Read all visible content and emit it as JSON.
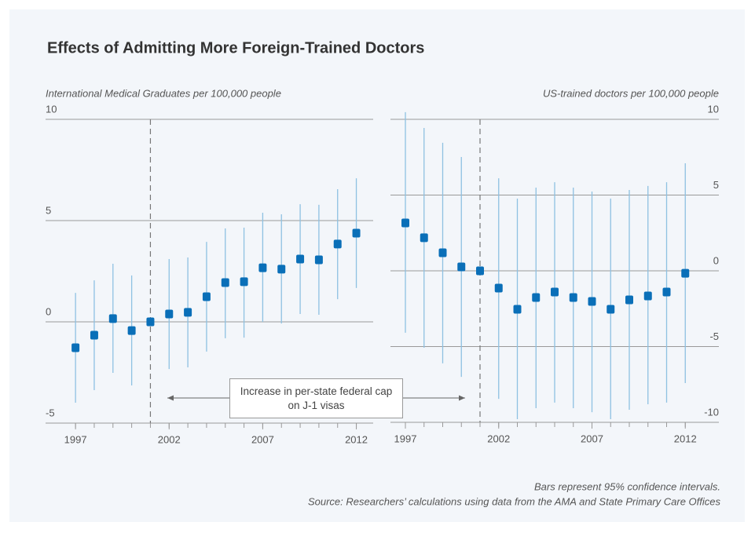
{
  "title": "Effects of Admitting More Foreign-Trained Doctors",
  "annotation": "Increase in per-state federal cap on J-1 visas",
  "notes": [
    "Bars represent 95% confidence intervals.",
    "Source: Researchers’ calculations using data from the AMA and State Primary Care Offices"
  ],
  "chart_data": [
    {
      "type": "errorbar",
      "y_label": "International Medical Graduates per 100,000 people",
      "ytick_side": "left",
      "x": [
        1997,
        1998,
        1999,
        2000,
        2001,
        2002,
        2003,
        2004,
        2005,
        2006,
        2007,
        2008,
        2009,
        2010,
        2011,
        2012
      ],
      "values": [
        -1.28,
        -0.66,
        0.16,
        -0.43,
        0,
        0.39,
        0.47,
        1.24,
        1.94,
        1.98,
        2.67,
        2.6,
        3.1,
        3.06,
        3.84,
        4.38
      ],
      "lower": [
        -3.99,
        -3.37,
        -2.52,
        -3.14,
        null,
        -2.33,
        -2.25,
        -1.47,
        -0.81,
        -0.78,
        0,
        -0.08,
        0.39,
        0.35,
        1.12,
        1.67
      ],
      "upper": [
        1.43,
        2.05,
        2.87,
        2.29,
        null,
        3.1,
        3.18,
        3.95,
        4.61,
        4.65,
        5.39,
        5.31,
        5.81,
        5.78,
        6.55,
        7.09
      ],
      "color": "#0a6fb8",
      "bar_color": "#8ec1e2",
      "vline": 2001,
      "xlim": [
        1995.4,
        2012.9
      ],
      "xticks": [
        1997,
        2002,
        2007,
        2012
      ],
      "ylim": [
        -5,
        10
      ],
      "yticks": [
        -5,
        0,
        5,
        10
      ],
      "grid": true
    },
    {
      "type": "errorbar",
      "y_label": "US-trained doctors per 100,000 people",
      "ytick_side": "right",
      "x": [
        1997,
        1998,
        1999,
        2000,
        2001,
        2002,
        2003,
        2004,
        2005,
        2006,
        2007,
        2008,
        2009,
        2010,
        2011,
        2012
      ],
      "values": [
        3.16,
        2.18,
        1.19,
        0.26,
        0,
        -1.14,
        -2.54,
        -1.76,
        -1.4,
        -1.76,
        -2.02,
        -2.54,
        -1.92,
        -1.66,
        -1.4,
        -0.16
      ],
      "lower": [
        -4.09,
        -5.08,
        -6.11,
        -7.0,
        null,
        -8.45,
        -9.79,
        -9.07,
        -8.7,
        -9.07,
        -9.33,
        -9.79,
        -9.17,
        -8.81,
        -8.7,
        -7.41
      ],
      "upper": [
        10.47,
        9.43,
        8.45,
        7.51,
        null,
        6.11,
        4.77,
        5.49,
        5.85,
        5.49,
        5.23,
        4.77,
        5.34,
        5.6,
        5.85,
        7.1
      ],
      "color": "#0a6fb8",
      "bar_color": "#8ec1e2",
      "vline": 2001,
      "xlim": [
        1996.2,
        2013.8
      ],
      "xticks": [
        1997,
        2002,
        2007,
        2012
      ],
      "ylim": [
        -10,
        10
      ],
      "yticks": [
        -10,
        -5,
        0,
        5,
        10
      ],
      "grid": true
    }
  ]
}
